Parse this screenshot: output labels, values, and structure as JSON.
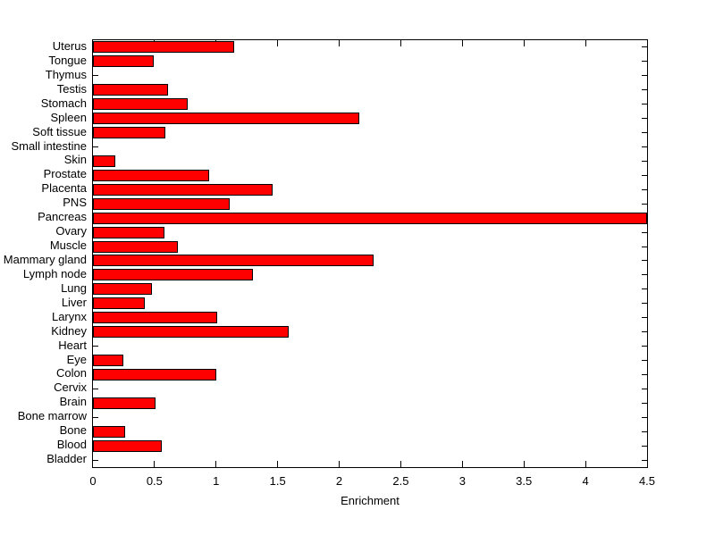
{
  "chart_data": {
    "type": "bar",
    "orientation": "horizontal",
    "title": "",
    "xlabel": "Enrichment",
    "ylabel": "",
    "xlim": [
      0,
      4.5
    ],
    "xticks": [
      0,
      0.5,
      1,
      1.5,
      2,
      2.5,
      3,
      3.5,
      4,
      4.5
    ],
    "xtick_labels": [
      "0",
      "0.5",
      "1",
      "1.5",
      "2",
      "2.5",
      "3",
      "3.5",
      "4",
      "4.5"
    ],
    "grid": false,
    "legend": "none",
    "bar_color": "#FF0000",
    "bar_edge_color": "#000000",
    "background_color": "#FFFFFF",
    "categories": [
      "Uterus",
      "Tongue",
      "Thymus",
      "Testis",
      "Stomach",
      "Spleen",
      "Soft tissue",
      "Small intestine",
      "Skin",
      "Prostate",
      "Placenta",
      "PNS",
      "Pancreas",
      "Ovary",
      "Muscle",
      "Mammary gland",
      "Lymph node",
      "Lung",
      "Liver",
      "Larynx",
      "Kidney",
      "Heart",
      "Eye",
      "Colon",
      "Cervix",
      "Brain",
      "Bone marrow",
      "Bone",
      "Blood",
      "Bladder"
    ],
    "values": [
      1.15,
      0.49,
      0,
      0.61,
      0.77,
      2.16,
      0.59,
      0,
      0.18,
      0.94,
      1.46,
      1.11,
      4.5,
      0.58,
      0.69,
      2.28,
      1.3,
      0.48,
      0.42,
      1.01,
      1.59,
      0,
      0.25,
      1.0,
      0,
      0.51,
      0,
      0.26,
      0.56,
      0
    ]
  }
}
